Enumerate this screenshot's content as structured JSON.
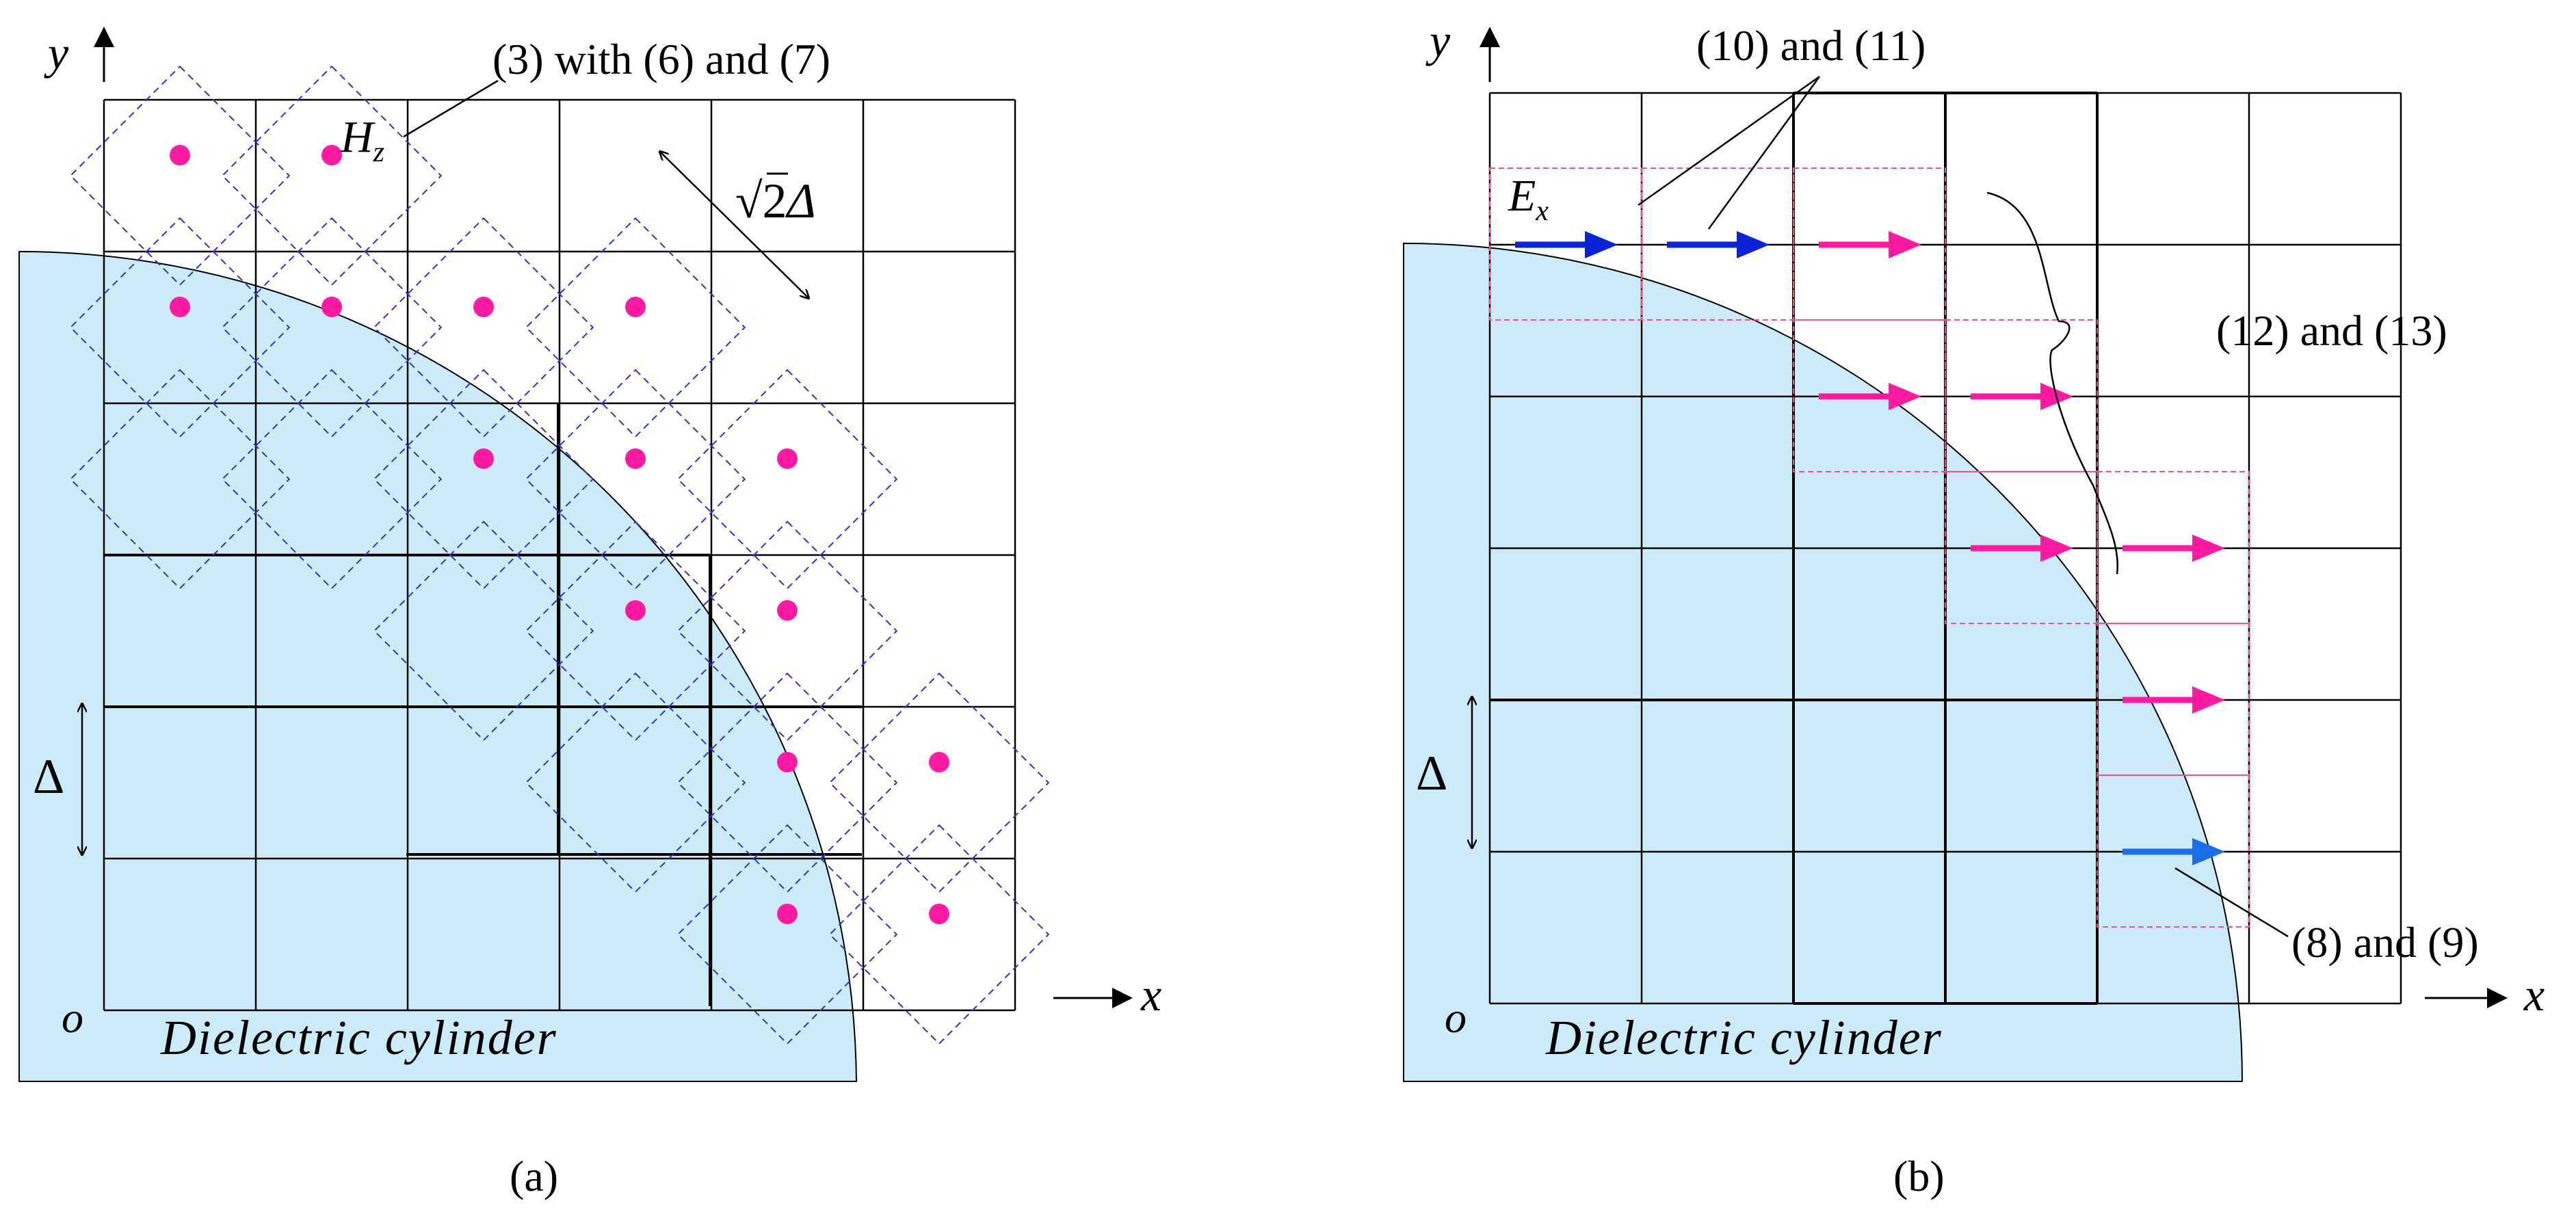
{
  "panels": {
    "a": {
      "caption": "(a)",
      "y_axis": "y",
      "x_axis": "x",
      "origin": "o",
      "cylinder_label": "Dielectric cylinder",
      "delta_label": "Δ",
      "callout_equation": "(3) with (6) and (7)",
      "field_symbol": "H",
      "field_subscript": "z",
      "diag_prefix": "√2",
      "diag_var": "Δ"
    },
    "b": {
      "caption": "(b)",
      "y_axis": "y",
      "x_axis": "x",
      "origin": "o",
      "cylinder_label": "Dielectric cylinder",
      "delta_label": "Δ",
      "callout_top": "(10) and (11)",
      "callout_right": "(12) and (13)",
      "callout_bottom": "(8) and (9)",
      "field_symbol": "E",
      "field_subscript": "x"
    }
  },
  "colors": {
    "cylinder_fill": "#cceaf8",
    "grid_line": "#000000",
    "dashed_cell": "#3333cc",
    "hz_dot": "#ff1aa3",
    "arrow_blue": "#0b22d6",
    "arrow_blue_light": "#1a6fe8",
    "arrow_magenta": "#ff1aa3",
    "dashed_box": "#ff4d8a"
  }
}
